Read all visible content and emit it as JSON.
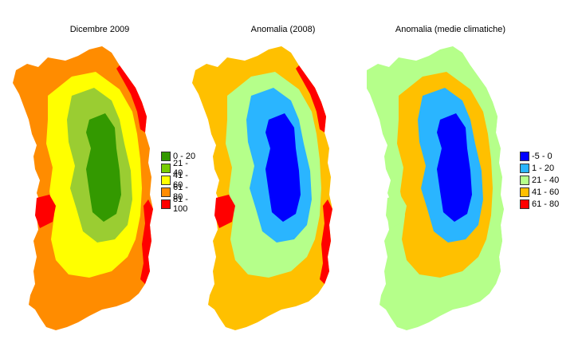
{
  "maps": [
    {
      "title": "Dicembre 2009",
      "palette": {
        "base": "#ff8c00",
        "mid": "#ffff00",
        "low": "#9acd32",
        "core": "#339900",
        "edge": "#ff0000"
      },
      "legend": [
        {
          "label": "0 - 20",
          "color": "#339900"
        },
        {
          "label": "21 - 40",
          "color": "#77cc00"
        },
        {
          "label": "41 - 60",
          "color": "#ffff00"
        },
        {
          "label": "61 - 80",
          "color": "#ff8c00"
        },
        {
          "label": "81 - 100",
          "color": "#ff0000"
        }
      ]
    },
    {
      "title": "Anomalia (2008)",
      "palette": {
        "base": "#ffc000",
        "mid": "#b5ff8a",
        "low": "#2ab5ff",
        "core": "#0000ff",
        "edge": "#ff0000"
      },
      "legend": []
    },
    {
      "title": "Anomalia (medie climatiche)",
      "palette": {
        "base": "#b5ff8a",
        "mid": "#ffc000",
        "low": "#2ab5ff",
        "core": "#0000ff",
        "edge": "#b5ff8a"
      },
      "legend": [
        {
          "label": "-5 - 0",
          "color": "#0000ff"
        },
        {
          "label": "1 - 20",
          "color": "#2ab5ff"
        },
        {
          "label": "21 - 40",
          "color": "#b5ff8a"
        },
        {
          "label": "41 - 60",
          "color": "#ffc000"
        },
        {
          "label": "61 - 80",
          "color": "#ff0000"
        }
      ]
    }
  ]
}
